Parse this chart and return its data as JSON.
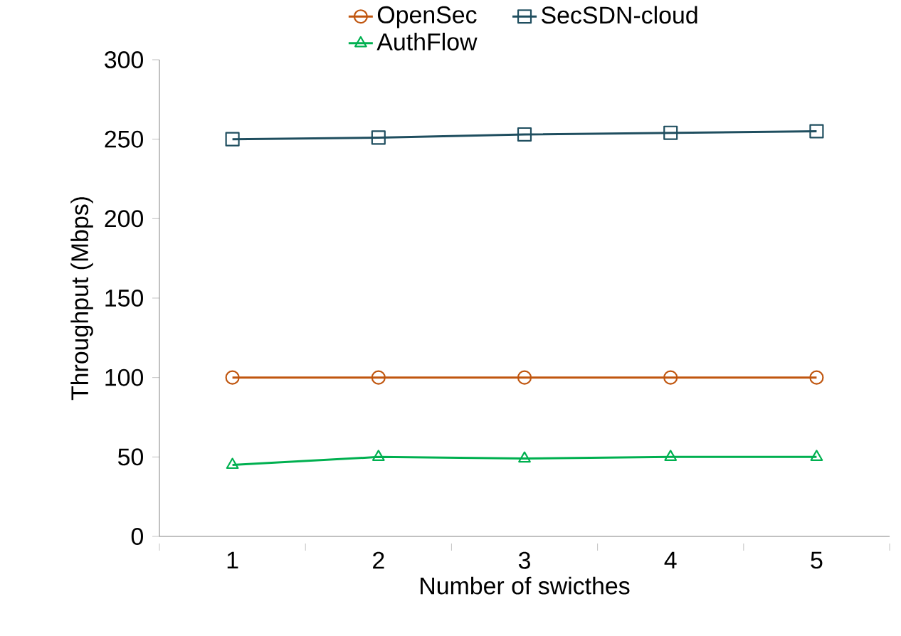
{
  "chart_data": {
    "type": "line",
    "xlabel": "Number of swicthes",
    "ylabel": "Throughput (Mbps)",
    "categories": [
      "1",
      "2",
      "3",
      "4",
      "5"
    ],
    "ylim": [
      0,
      300
    ],
    "yticks": [
      0,
      50,
      100,
      150,
      200,
      250,
      300
    ],
    "legend": "top",
    "grid": false,
    "line_style": "solid",
    "series": [
      {
        "name": "OpenSec",
        "color": "#c0560f",
        "marker": "circle",
        "values": [
          100,
          100,
          100,
          100,
          100
        ]
      },
      {
        "name": "SecSDN-cloud",
        "color": "#1f4e5f",
        "marker": "square",
        "values": [
          250,
          251,
          253,
          254,
          255
        ]
      },
      {
        "name": "AuthFlow",
        "color": "#00b050",
        "marker": "triangle",
        "values": [
          45,
          50,
          49,
          50,
          50
        ]
      }
    ]
  }
}
